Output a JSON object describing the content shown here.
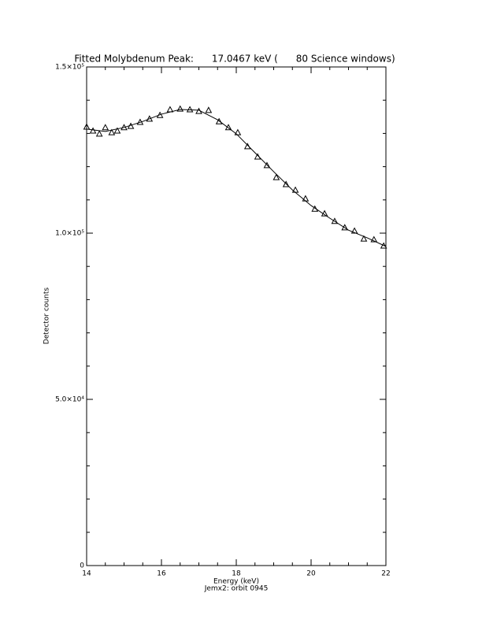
{
  "chart_data": {
    "type": "scatter",
    "title": "Fitted Molybdenum Peak:      17.0467 keV (      80 Science windows)",
    "x_label": "Energy (keV)",
    "subtitle": "Jemx2: orbit 0945",
    "y_label": "Detector counts",
    "xlim": [
      14,
      22
    ],
    "ylim": [
      0,
      150000
    ],
    "xticks": [
      14,
      16,
      18,
      20,
      22
    ],
    "yticks": [
      {
        "value": 0,
        "label": "0"
      },
      {
        "value": 50000,
        "label": "5.0×10⁴"
      },
      {
        "value": 100000,
        "label": "1.0×10⁵"
      },
      {
        "value": 150000,
        "label": "1.5×10⁵"
      }
    ],
    "x_minor_ticks": [
      14.5,
      15,
      15.5,
      16.5,
      17,
      17.5,
      18.5,
      19,
      19.5,
      20.5,
      21,
      21.5
    ],
    "y_minor_ticks": [
      10000,
      20000,
      30000,
      40000,
      60000,
      70000,
      80000,
      90000,
      110000,
      120000,
      130000,
      140000
    ],
    "series": [
      {
        "style": "markers",
        "marker": "triangle",
        "color": "#000000",
        "x": [
          14.0,
          14.17,
          14.34,
          14.5,
          14.67,
          14.82,
          15.0,
          15.18,
          15.43,
          15.68,
          15.96,
          16.23,
          16.5,
          16.76,
          17.0,
          17.26,
          17.54,
          17.79,
          18.04,
          18.3,
          18.57,
          18.82,
          19.07,
          19.33,
          19.58,
          19.85,
          20.1,
          20.36,
          20.63,
          20.9,
          21.16,
          21.41,
          21.68,
          21.94
        ],
        "values": [
          132000,
          130800,
          129900,
          131800,
          130300,
          130800,
          131800,
          132200,
          133400,
          134400,
          135500,
          137200,
          137400,
          137200,
          136700,
          137000,
          133600,
          131800,
          130300,
          126100,
          123000,
          120400,
          116800,
          114700,
          113000,
          110400,
          107300,
          105900,
          103600,
          101700,
          100700,
          98300,
          98100,
          96200
        ]
      },
      {
        "style": "line",
        "color": "#000000",
        "x": [
          14,
          14.5,
          15,
          15.5,
          16,
          16.5,
          17,
          17.5,
          18,
          18.5,
          19,
          19.5,
          20,
          20.5,
          21,
          21.5,
          22
        ],
        "values": [
          131300,
          130600,
          131800,
          133600,
          135800,
          137200,
          137000,
          134100,
          129900,
          124200,
          118500,
          113000,
          108300,
          104500,
          100900,
          98600,
          96000
        ]
      }
    ]
  }
}
